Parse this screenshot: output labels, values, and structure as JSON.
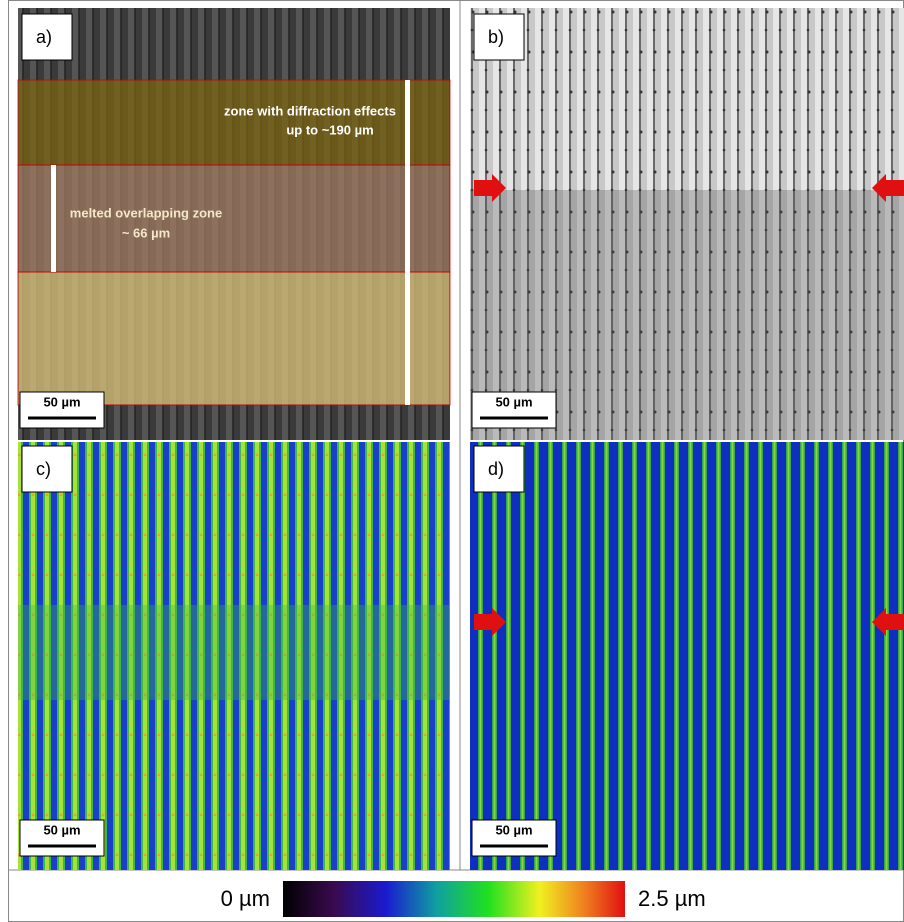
{
  "panels": [
    {
      "label": "a)",
      "scale_bar": "50 µm",
      "annotations": [
        "zone with diffraction effects",
        "up to ~190 µm",
        "melted overlapping zone",
        "~ 66 µm"
      ]
    },
    {
      "label": "b)",
      "scale_bar": "50 µm"
    },
    {
      "label": "c)",
      "scale_bar": "50 µm"
    },
    {
      "label": "d)",
      "scale_bar": "50 µm"
    }
  ],
  "colorbar": {
    "min_label": "0 µm",
    "max_label": "2.5 µm"
  }
}
